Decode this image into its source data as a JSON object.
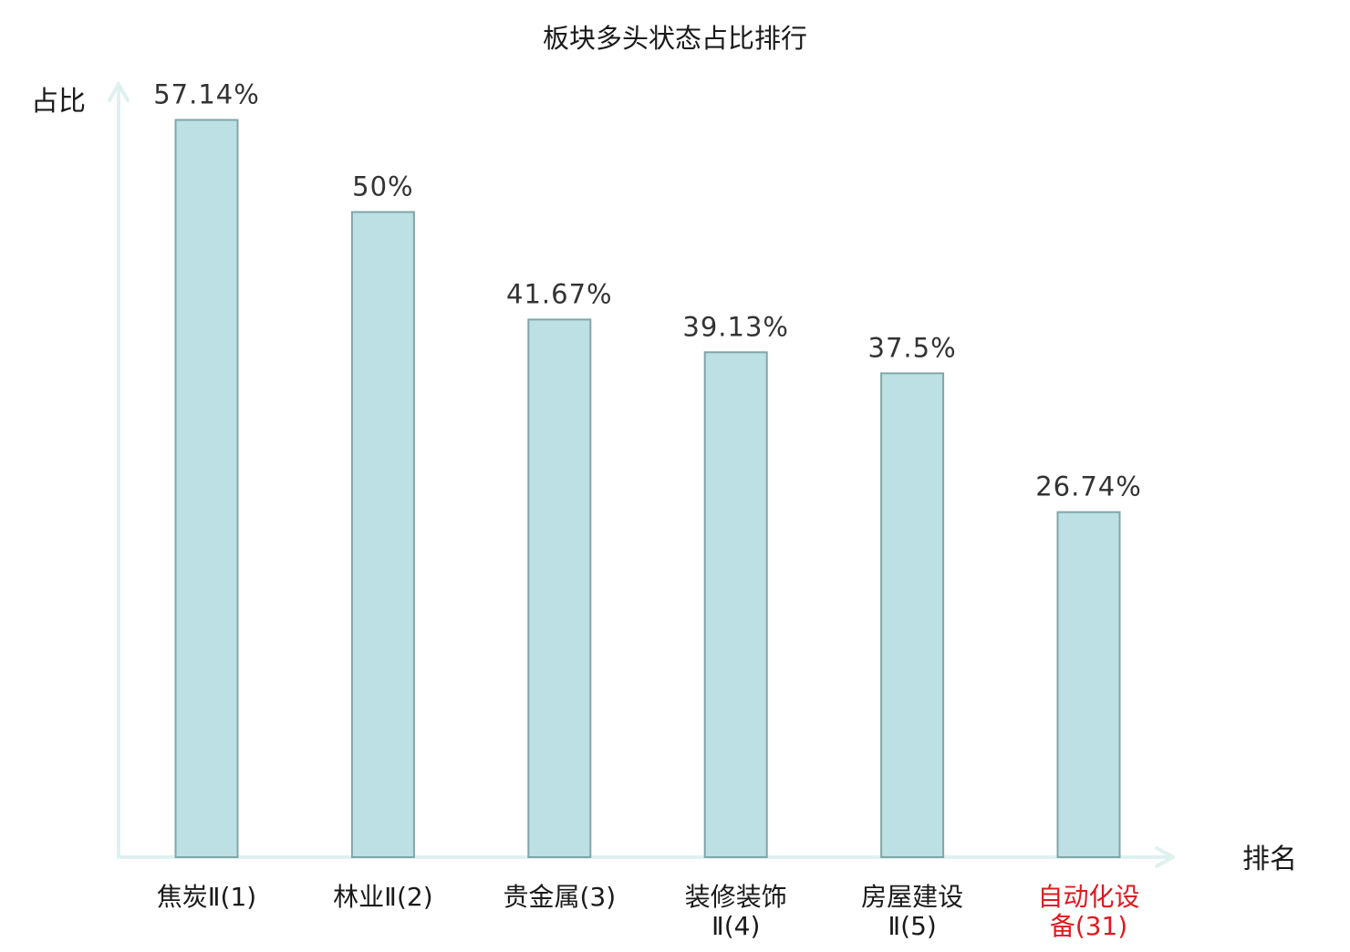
{
  "chart_data": {
    "type": "bar",
    "title": "板块多头状态占比排行",
    "ylabel": "占比",
    "xlabel": "排名",
    "categories": [
      [
        "焦炭Ⅱ(1)"
      ],
      [
        "林业Ⅱ(2)"
      ],
      [
        "贵金属(3)"
      ],
      [
        "装修装饰",
        "Ⅱ(4)"
      ],
      [
        "房屋建设",
        "Ⅱ(5)"
      ],
      [
        "自动化设",
        "备(31)"
      ]
    ],
    "values": [
      57.14,
      50,
      41.67,
      39.13,
      37.5,
      26.74
    ],
    "value_labels": [
      "57.14%",
      "50%",
      "41.67%",
      "39.13%",
      "37.5%",
      "26.74%"
    ],
    "highlight_index": 5,
    "ylim": [
      0,
      60
    ],
    "grid": false,
    "legend": "none"
  },
  "colors": {
    "bar_fill": "#bce0e3",
    "bar_stroke": "#7fa6a8",
    "axis": "#dff1ef",
    "label_text": "#1a1a1a",
    "value_text": "#333333",
    "highlight_text": "#e0191e"
  }
}
